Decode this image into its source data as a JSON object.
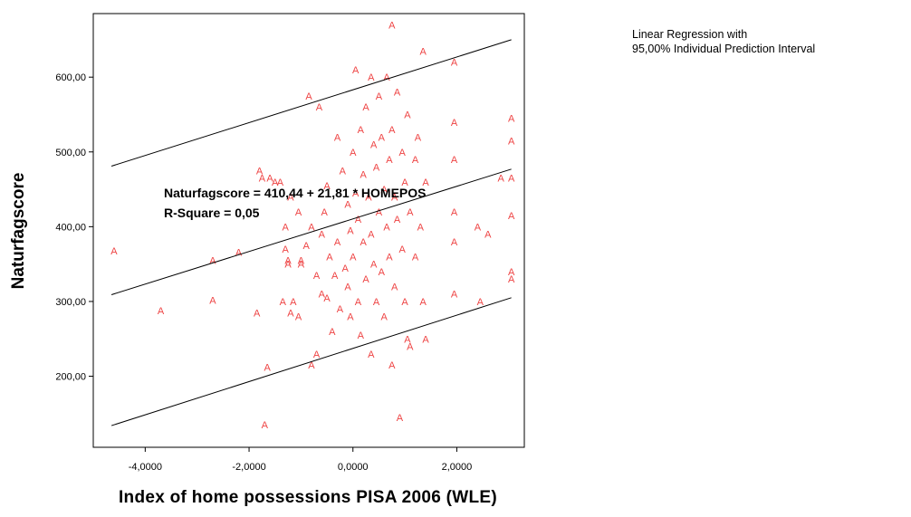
{
  "chart_data": {
    "type": "scatter",
    "xlabel": "Index of home possessions PISA 2006 (WLE)",
    "ylabel": "Naturfagscore",
    "xlim": [
      -5.0,
      3.3
    ],
    "ylim": [
      105,
      685
    ],
    "x_ticks": [
      -4,
      -2,
      0,
      2
    ],
    "x_tick_labels": [
      "-4,0000",
      "-2,0000",
      "0,0000",
      "2,0000"
    ],
    "y_ticks": [
      200,
      300,
      400,
      500,
      600
    ],
    "y_tick_labels": [
      "200,00",
      "300,00",
      "400,00",
      "500,00",
      "600,00"
    ],
    "marker_glyph": "A",
    "marker_color": "#ee4444",
    "line_color": "#000000",
    "legend": {
      "lines": [
        "Linear Regression with",
        "95,00% Individual Prediction Interval"
      ],
      "position": "top-right"
    },
    "annotation": {
      "lines": [
        "Naturfagscore = 410,44 + 21,81 * HOMEPOS",
        "R-Square = 0,05"
      ]
    },
    "regression": {
      "intercept": 410.44,
      "slope": 21.81,
      "x_range": [
        -4.65,
        3.05
      ],
      "lower_band": [
        [
          -4.65,
          134
        ],
        [
          3.05,
          305
        ]
      ],
      "upper_band": [
        [
          -4.65,
          481
        ],
        [
          3.05,
          650
        ]
      ]
    },
    "points": [
      [
        -4.6,
        368
      ],
      [
        -3.7,
        288
      ],
      [
        -2.7,
        355
      ],
      [
        -2.7,
        302
      ],
      [
        -2.2,
        366
      ],
      [
        -1.85,
        285
      ],
      [
        -1.8,
        475
      ],
      [
        -1.75,
        465
      ],
      [
        -1.7,
        135
      ],
      [
        -1.65,
        212
      ],
      [
        -1.6,
        465
      ],
      [
        -1.5,
        460
      ],
      [
        -1.4,
        460
      ],
      [
        -1.35,
        300
      ],
      [
        -1.3,
        400
      ],
      [
        -1.3,
        370
      ],
      [
        -1.25,
        355
      ],
      [
        -1.25,
        350
      ],
      [
        -1.2,
        440
      ],
      [
        -1.2,
        285
      ],
      [
        -1.15,
        300
      ],
      [
        -1.05,
        280
      ],
      [
        -1.05,
        420
      ],
      [
        -1.0,
        355
      ],
      [
        -1.0,
        350
      ],
      [
        -0.9,
        375
      ],
      [
        -0.85,
        575
      ],
      [
        -0.8,
        400
      ],
      [
        -0.8,
        215
      ],
      [
        -0.7,
        335
      ],
      [
        -0.7,
        230
      ],
      [
        -0.65,
        560
      ],
      [
        -0.6,
        390
      ],
      [
        -0.6,
        310
      ],
      [
        -0.55,
        420
      ],
      [
        -0.5,
        455
      ],
      [
        -0.5,
        305
      ],
      [
        -0.45,
        360
      ],
      [
        -0.4,
        260
      ],
      [
        -0.35,
        335
      ],
      [
        -0.3,
        520
      ],
      [
        -0.3,
        380
      ],
      [
        -0.25,
        290
      ],
      [
        -0.2,
        475
      ],
      [
        -0.15,
        345
      ],
      [
        -0.1,
        430
      ],
      [
        -0.1,
        320
      ],
      [
        -0.05,
        395
      ],
      [
        -0.05,
        280
      ],
      [
        0.0,
        500
      ],
      [
        0.0,
        360
      ],
      [
        0.05,
        610
      ],
      [
        0.05,
        445
      ],
      [
        0.1,
        410
      ],
      [
        0.1,
        300
      ],
      [
        0.15,
        530
      ],
      [
        0.15,
        255
      ],
      [
        0.2,
        470
      ],
      [
        0.2,
        380
      ],
      [
        0.25,
        560
      ],
      [
        0.25,
        330
      ],
      [
        0.3,
        440
      ],
      [
        0.35,
        600
      ],
      [
        0.35,
        390
      ],
      [
        0.35,
        230
      ],
      [
        0.4,
        510
      ],
      [
        0.4,
        350
      ],
      [
        0.45,
        480
      ],
      [
        0.45,
        300
      ],
      [
        0.5,
        575
      ],
      [
        0.5,
        420
      ],
      [
        0.55,
        520
      ],
      [
        0.55,
        340
      ],
      [
        0.6,
        450
      ],
      [
        0.6,
        280
      ],
      [
        0.65,
        600
      ],
      [
        0.65,
        400
      ],
      [
        0.7,
        490
      ],
      [
        0.7,
        360
      ],
      [
        0.75,
        670
      ],
      [
        0.75,
        530
      ],
      [
        0.75,
        215
      ],
      [
        0.8,
        440
      ],
      [
        0.8,
        320
      ],
      [
        0.85,
        580
      ],
      [
        0.85,
        410
      ],
      [
        0.9,
        145
      ],
      [
        0.95,
        500
      ],
      [
        0.95,
        370
      ],
      [
        1.0,
        460
      ],
      [
        1.0,
        300
      ],
      [
        1.05,
        550
      ],
      [
        1.05,
        250
      ],
      [
        1.1,
        420
      ],
      [
        1.1,
        240
      ],
      [
        1.2,
        490
      ],
      [
        1.2,
        360
      ],
      [
        1.25,
        520
      ],
      [
        1.3,
        400
      ],
      [
        1.35,
        635
      ],
      [
        1.35,
        300
      ],
      [
        1.4,
        460
      ],
      [
        1.4,
        250
      ],
      [
        1.95,
        620
      ],
      [
        1.95,
        540
      ],
      [
        1.95,
        490
      ],
      [
        1.95,
        420
      ],
      [
        1.95,
        380
      ],
      [
        1.95,
        310
      ],
      [
        2.45,
        300
      ],
      [
        2.4,
        400
      ],
      [
        2.6,
        390
      ],
      [
        2.85,
        465
      ],
      [
        3.05,
        545
      ],
      [
        3.05,
        515
      ],
      [
        3.05,
        465
      ],
      [
        3.05,
        340
      ],
      [
        3.05,
        330
      ],
      [
        3.05,
        415
      ]
    ]
  }
}
